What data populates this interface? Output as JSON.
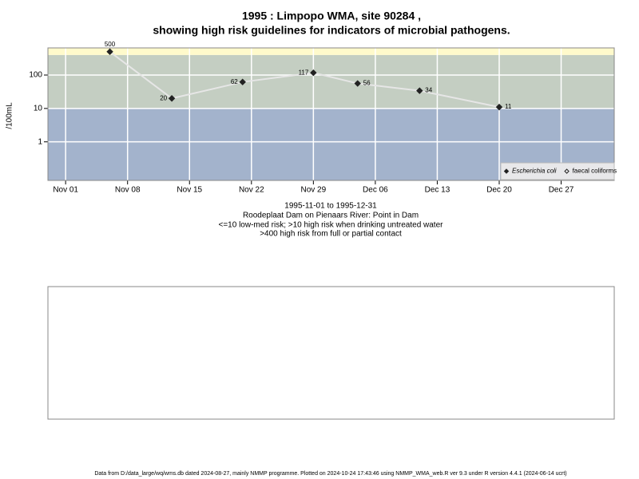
{
  "chart_data": {
    "type": "line",
    "title": "1995 : Limpopo WMA, site 90284 ,",
    "title2": "showing high risk guidelines for indicators of microbial pathogens.",
    "subtitle": [
      "1995-11-01 to 1995-12-31",
      "Roodeplaat Dam on Pienaars River: Point in Dam",
      "<=10 low-med risk; >10 high risk when drinking untreated water",
      ">400 high risk from full or partial contact"
    ],
    "y_label": "/100mL",
    "log_y": true,
    "grid": true,
    "legend": "bottom-right",
    "x": [
      "1995-11-06",
      "1995-11-13",
      "1995-11-21",
      "1995-11-29",
      "1995-12-04",
      "1995-12-11",
      "1995-12-20"
    ],
    "series": [
      {
        "name": "Escherichia coli",
        "color": "#222222",
        "line_color": "#e6e6e6",
        "marker": "filled",
        "values": [
          500,
          20,
          62,
          117,
          56,
          34,
          11
        ]
      },
      {
        "name": "faecal coliforms",
        "color": "#222222",
        "marker": "open",
        "values": [
          null,
          null,
          null,
          null,
          null,
          null,
          null
        ]
      }
    ],
    "bands": [
      {
        "min": null,
        "max": 10,
        "color": "#a3b3cc"
      },
      {
        "min": 10,
        "max": 400,
        "color": "#c4cec2"
      },
      {
        "min": 400,
        "max": null,
        "color": "#fffacb"
      }
    ],
    "xlim": [
      "1995-10-30",
      "1996-01-02"
    ],
    "xticks": [
      {
        "value": "1995-11-01",
        "label": "Nov 01"
      },
      {
        "value": "1995-11-08",
        "label": "Nov 08"
      },
      {
        "value": "1995-11-15",
        "label": "Nov 15"
      },
      {
        "value": "1995-11-22",
        "label": "Nov 22"
      },
      {
        "value": "1995-11-29",
        "label": "Nov 29"
      },
      {
        "value": "1995-12-06",
        "label": "Dec 06"
      },
      {
        "value": "1995-12-13",
        "label": "Dec 13"
      },
      {
        "value": "1995-12-20",
        "label": "Dec 20"
      },
      {
        "value": "1995-12-27",
        "label": "Dec 27"
      }
    ],
    "ylim": [
      0.07,
      650
    ],
    "yticks": [
      1,
      10,
      100
    ],
    "footer": "Data from D:/data_large/wq/wms.db dated 2024-08-27, mainly NMMP programme. Plotted on 2024-10-24 17:43:46 using NMMP_WMA_web.R ver 9.3 under R version 4.4.1 (2024-06-14 ucrt)"
  }
}
